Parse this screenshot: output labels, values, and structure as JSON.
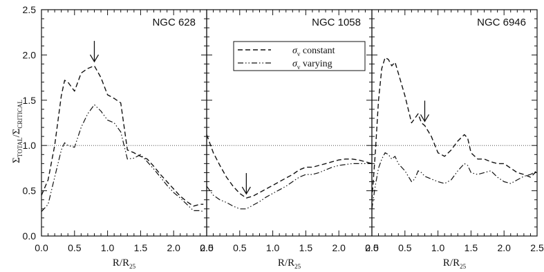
{
  "figure": {
    "ylabel": "Σ_TOTAL/Σ_CRITICAL",
    "ylabel_main": "Σ",
    "ylabel_sub_top": "TOTAL",
    "ylabel_sub_bottom": "CRITICAL",
    "xlabel_main": "R/R",
    "xlabel_sub": "25"
  },
  "legend": {
    "panel_index": 1,
    "items": [
      {
        "symbol": "σ",
        "sub": "v",
        "text": " constant",
        "style": "dashed"
      },
      {
        "symbol": "σ",
        "sub": "v",
        "text": " varying",
        "style": "dashdot"
      }
    ]
  },
  "chart_data": [
    {
      "type": "line",
      "title": "NGC 628",
      "xlim": [
        0.0,
        2.5
      ],
      "ylim": [
        0.0,
        2.5
      ],
      "xticks": [
        "0.0",
        "0.5",
        "1.0",
        "1.5",
        "2.0",
        "2.5"
      ],
      "yticks": [
        "0.0",
        "0.5",
        "1.0",
        "1.5",
        "2.0",
        "2.5"
      ],
      "reference_line": 1.0,
      "arrow_x": 0.8,
      "series": [
        {
          "name": "σv constant",
          "style": "dashed",
          "x": [
            0.0,
            0.1,
            0.2,
            0.3,
            0.35,
            0.4,
            0.5,
            0.6,
            0.7,
            0.8,
            0.9,
            1.0,
            1.1,
            1.2,
            1.3,
            1.4,
            1.5,
            1.6,
            1.7,
            1.8,
            1.9,
            2.0,
            2.1,
            2.2,
            2.3,
            2.4,
            2.45
          ],
          "y": [
            0.45,
            0.62,
            1.0,
            1.55,
            1.72,
            1.7,
            1.6,
            1.8,
            1.85,
            1.88,
            1.75,
            1.56,
            1.52,
            1.47,
            0.95,
            0.92,
            0.88,
            0.85,
            0.77,
            0.68,
            0.6,
            0.52,
            0.44,
            0.38,
            0.33,
            0.35,
            0.35
          ]
        },
        {
          "name": "σv varying",
          "style": "dashdot",
          "x": [
            0.0,
            0.1,
            0.2,
            0.3,
            0.35,
            0.4,
            0.5,
            0.6,
            0.7,
            0.8,
            0.9,
            1.0,
            1.1,
            1.2,
            1.3,
            1.4,
            1.5,
            1.6,
            1.7,
            1.8,
            1.9,
            2.0,
            2.1,
            2.2,
            2.3,
            2.4,
            2.45
          ],
          "y": [
            0.27,
            0.35,
            0.65,
            0.95,
            1.03,
            1.0,
            0.98,
            1.2,
            1.35,
            1.45,
            1.38,
            1.28,
            1.25,
            1.15,
            0.85,
            0.86,
            0.9,
            0.82,
            0.74,
            0.65,
            0.56,
            0.48,
            0.42,
            0.35,
            0.28,
            0.28,
            0.27
          ]
        }
      ]
    },
    {
      "type": "line",
      "title": "NGC 1058",
      "xlim": [
        0.0,
        2.5
      ],
      "ylim": [
        0.0,
        2.5
      ],
      "xticks": [
        "0.0",
        "0.5",
        "1.0",
        "1.5",
        "2.0",
        "2.5"
      ],
      "yticks": [],
      "reference_line": 1.0,
      "arrow_x": 0.6,
      "series": [
        {
          "name": "σv constant",
          "style": "dashed",
          "x": [
            0.0,
            0.1,
            0.2,
            0.3,
            0.4,
            0.5,
            0.6,
            0.7,
            0.8,
            0.9,
            1.0,
            1.1,
            1.2,
            1.3,
            1.4,
            1.5,
            1.6,
            1.7,
            1.8,
            1.9,
            2.0,
            2.1,
            2.2,
            2.3,
            2.4,
            2.5
          ],
          "y": [
            1.12,
            0.92,
            0.78,
            0.65,
            0.55,
            0.47,
            0.42,
            0.44,
            0.48,
            0.52,
            0.56,
            0.6,
            0.64,
            0.68,
            0.73,
            0.76,
            0.76,
            0.78,
            0.8,
            0.82,
            0.84,
            0.85,
            0.85,
            0.84,
            0.82,
            0.8
          ]
        },
        {
          "name": "σv varying",
          "style": "dashdot",
          "x": [
            0.0,
            0.1,
            0.2,
            0.3,
            0.4,
            0.5,
            0.6,
            0.7,
            0.8,
            0.9,
            1.0,
            1.1,
            1.2,
            1.3,
            1.4,
            1.5,
            1.6,
            1.7,
            1.8,
            1.9,
            2.0,
            2.1,
            2.2,
            2.3,
            2.4,
            2.5
          ],
          "y": [
            0.55,
            0.45,
            0.4,
            0.37,
            0.33,
            0.3,
            0.3,
            0.34,
            0.38,
            0.43,
            0.47,
            0.51,
            0.55,
            0.6,
            0.65,
            0.68,
            0.68,
            0.7,
            0.73,
            0.76,
            0.78,
            0.79,
            0.8,
            0.8,
            0.8,
            0.8
          ]
        }
      ]
    },
    {
      "type": "line",
      "title": "NGC 6946",
      "xlim": [
        0.0,
        2.5
      ],
      "ylim": [
        0.0,
        2.5
      ],
      "xticks": [
        "0.0",
        "0.5",
        "1.0",
        "1.5",
        "2.0",
        "2.5"
      ],
      "yticks": [],
      "reference_line": 1.0,
      "arrow_x": 0.8,
      "series": [
        {
          "name": "σv constant",
          "style": "dashed",
          "x": [
            0.0,
            0.05,
            0.1,
            0.15,
            0.2,
            0.25,
            0.3,
            0.35,
            0.4,
            0.5,
            0.6,
            0.65,
            0.7,
            0.75,
            0.8,
            0.9,
            1.0,
            1.1,
            1.2,
            1.3,
            1.4,
            1.45,
            1.5,
            1.6,
            1.7,
            1.8,
            1.9,
            2.0,
            2.1,
            2.2,
            2.3,
            2.4,
            2.5
          ],
          "y": [
            0.4,
            0.9,
            1.5,
            1.85,
            1.97,
            1.95,
            1.88,
            1.92,
            1.8,
            1.55,
            1.25,
            1.3,
            1.35,
            1.25,
            1.22,
            1.1,
            0.92,
            0.88,
            0.95,
            1.05,
            1.12,
            1.08,
            0.92,
            0.85,
            0.85,
            0.82,
            0.8,
            0.8,
            0.75,
            0.7,
            0.68,
            0.65,
            0.72
          ]
        },
        {
          "name": "σv varying",
          "style": "dashdot",
          "x": [
            0.0,
            0.05,
            0.1,
            0.15,
            0.2,
            0.25,
            0.3,
            0.35,
            0.4,
            0.5,
            0.6,
            0.65,
            0.7,
            0.75,
            0.8,
            0.9,
            1.0,
            1.1,
            1.2,
            1.3,
            1.4,
            1.45,
            1.5,
            1.6,
            1.7,
            1.8,
            1.9,
            2.0,
            2.1,
            2.2,
            2.3,
            2.4,
            2.5
          ],
          "y": [
            0.3,
            0.55,
            0.75,
            0.85,
            0.92,
            0.9,
            0.85,
            0.88,
            0.8,
            0.72,
            0.6,
            0.63,
            0.72,
            0.7,
            0.66,
            0.63,
            0.6,
            0.58,
            0.62,
            0.72,
            0.8,
            0.78,
            0.7,
            0.68,
            0.7,
            0.72,
            0.65,
            0.6,
            0.58,
            0.62,
            0.66,
            0.68,
            0.72
          ]
        }
      ]
    }
  ]
}
